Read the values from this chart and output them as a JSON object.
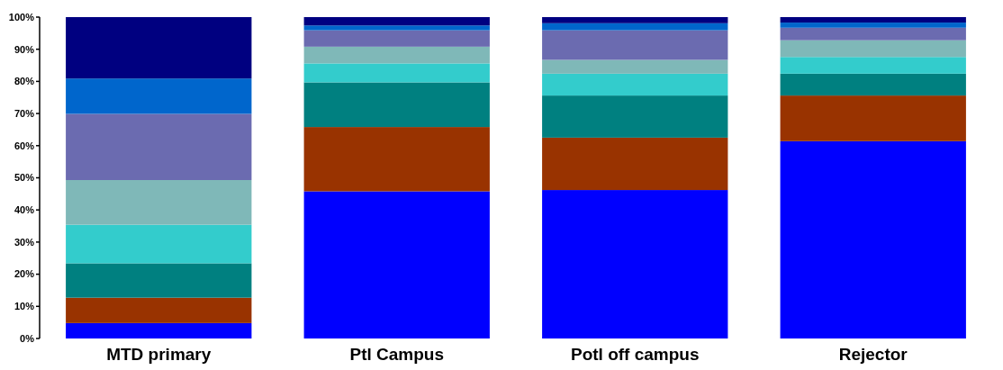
{
  "chart_data": {
    "type": "bar",
    "stacked": true,
    "categories": [
      "MTD primary",
      "Ptl Campus",
      "Potl off campus",
      "Rejector"
    ],
    "series": [
      {
        "color": "#0000ff",
        "values": [
          4.8,
          45.8,
          46.2,
          61.4
        ]
      },
      {
        "color": "#993300",
        "values": [
          7.9,
          20.0,
          16.3,
          14.2
        ]
      },
      {
        "color": "#008080",
        "values": [
          10.7,
          13.9,
          13.1,
          6.8
        ]
      },
      {
        "color": "#33cccc",
        "values": [
          12.0,
          5.9,
          6.8,
          5.2
        ]
      },
      {
        "color": "#7fb8b8",
        "values": [
          13.9,
          5.2,
          4.3,
          5.2
        ]
      },
      {
        "color": "#6b6bb0",
        "values": [
          20.6,
          5.1,
          9.2,
          3.9
        ]
      },
      {
        "color": "#0066cc",
        "values": [
          11.0,
          1.5,
          2.2,
          1.6
        ]
      },
      {
        "color": "#000080",
        "values": [
          19.1,
          2.6,
          1.9,
          1.7
        ]
      }
    ],
    "ylim": [
      0,
      100
    ],
    "yticks": [
      {
        "value": 0,
        "label": "0%"
      },
      {
        "value": 10,
        "label": "10%"
      },
      {
        "value": 20,
        "label": "20%"
      },
      {
        "value": 30,
        "label": "30%"
      },
      {
        "value": 40,
        "label": "40%"
      },
      {
        "value": 50,
        "label": "50%"
      },
      {
        "value": 60,
        "label": "60%"
      },
      {
        "value": 70,
        "label": "70%"
      },
      {
        "value": 80,
        "label": "80%"
      },
      {
        "value": 90,
        "label": "90%"
      },
      {
        "value": 100,
        "label": "100%"
      }
    ],
    "grid": false
  }
}
